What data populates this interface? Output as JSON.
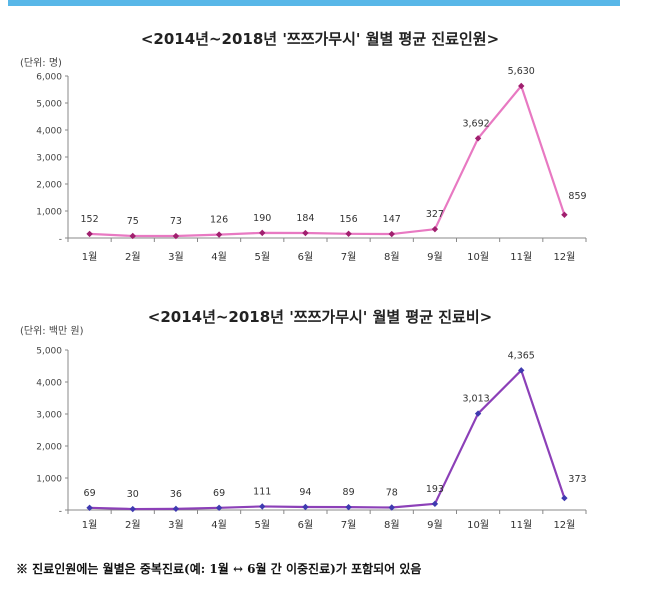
{
  "footnote": "※ 진료인원에는 월별은 중복진료(예: 1월 ↔ 6월 간 이중진료)가 포함되어 있음",
  "chart_data": [
    {
      "type": "line",
      "title": "<2014년~2018년 '쯔쯔가무시' 월별 평균 진료인원>",
      "unit": "(단위: 명)",
      "categories": [
        "1월",
        "2월",
        "3월",
        "4월",
        "5월",
        "6월",
        "7월",
        "8월",
        "9월",
        "10월",
        "11월",
        "12월"
      ],
      "values": [
        152,
        75,
        73,
        126,
        190,
        184,
        156,
        147,
        327,
        3692,
        5630,
        859
      ],
      "data_labels": [
        "152",
        "75",
        "73",
        "126",
        "190",
        "184",
        "156",
        "147",
        "327",
        "3,692",
        "5,630",
        "859"
      ],
      "y_ticks": [
        0,
        1000,
        2000,
        3000,
        4000,
        5000,
        6000
      ],
      "y_tick_labels": [
        "-",
        "1,000",
        "2,000",
        "3,000",
        "4,000",
        "5,000",
        "6,000"
      ],
      "ylim": [
        0,
        6000
      ],
      "line_color": "#e879c2",
      "marker_color": "#a01f6e",
      "grid": false
    },
    {
      "type": "line",
      "title": "<2014년~2018년 '쯔쯔가무시' 월별 평균 진료비>",
      "unit": "(단위: 백만 원)",
      "categories": [
        "1월",
        "2월",
        "3월",
        "4월",
        "5월",
        "6월",
        "7월",
        "8월",
        "9월",
        "10월",
        "11월",
        "12월"
      ],
      "values": [
        69,
        30,
        36,
        69,
        111,
        94,
        89,
        78,
        193,
        3013,
        4365,
        373
      ],
      "data_labels": [
        "69",
        "30",
        "36",
        "69",
        "111",
        "94",
        "89",
        "78",
        "193",
        "3,013",
        "4,365",
        "373"
      ],
      "y_ticks": [
        0,
        1000,
        2000,
        3000,
        4000,
        5000
      ],
      "y_tick_labels": [
        "-",
        "1,000",
        "2,000",
        "3,000",
        "4,000",
        "5,000"
      ],
      "ylim": [
        0,
        5000
      ],
      "line_color": "#8c40b8",
      "marker_color": "#3f3ab0",
      "grid": false
    }
  ]
}
